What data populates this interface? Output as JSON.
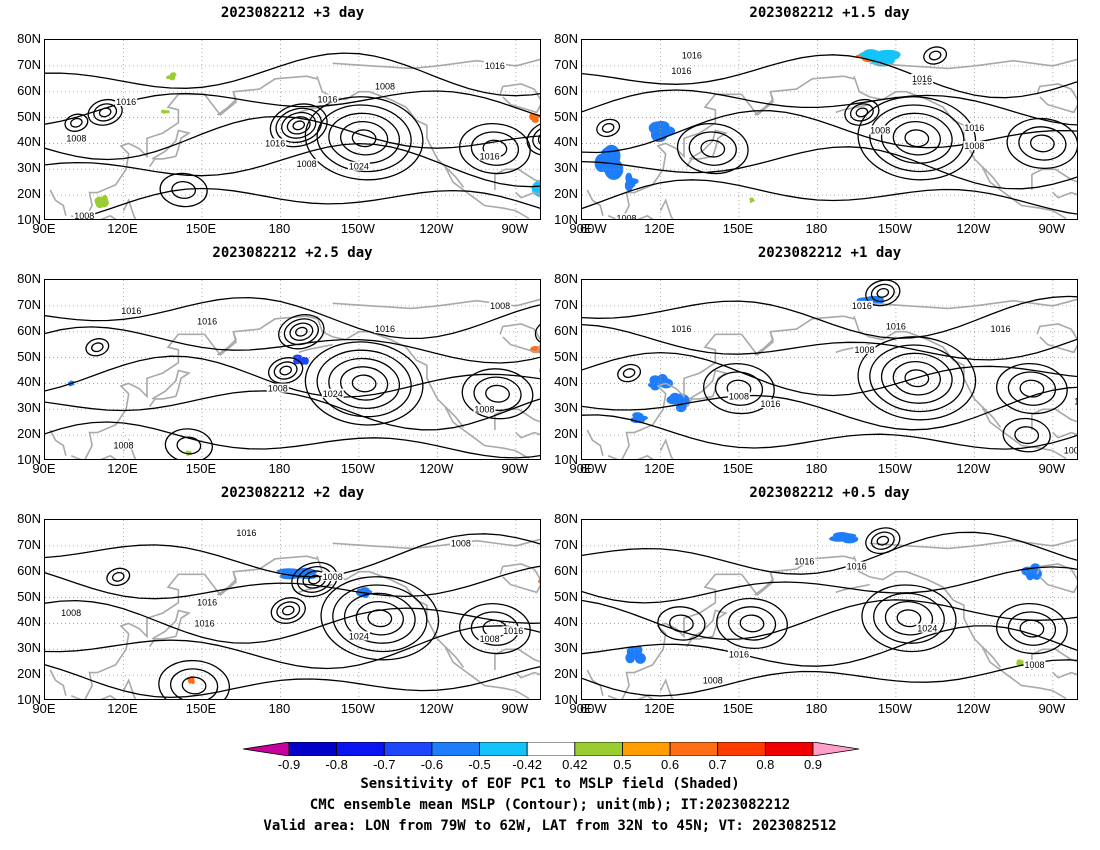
{
  "panels": [
    {
      "title": "2023082212 +3 day",
      "contour_labels": [
        "1008",
        "1016",
        "1008",
        "1016",
        "1008",
        "1016",
        "1016",
        "1024",
        "1016",
        "1016",
        "1008"
      ]
    },
    {
      "title": "2023082212 +1.5 day",
      "contour_labels": [
        "1016",
        "1016",
        "1016",
        "1008",
        "1016",
        "1016",
        "1008",
        "1008",
        "1016",
        "1008"
      ]
    },
    {
      "title": "2023082212 +2.5 day",
      "contour_labels": [
        "1016",
        "1016",
        "1016",
        "1008",
        "1008",
        "1024",
        "1008",
        "1016",
        "1008"
      ]
    },
    {
      "title": "2023082212 +1 day",
      "contour_labels": [
        "1016",
        "1016",
        "1016",
        "1016",
        "1008",
        "1008",
        "1016",
        "1016",
        "1008"
      ]
    },
    {
      "title": "2023082212 +2 day",
      "contour_labels": [
        "1016",
        "1008",
        "1016",
        "1008",
        "1016",
        "1008",
        "1024",
        "1008",
        "1016",
        "1016"
      ]
    },
    {
      "title": "2023082212 +0.5 day",
      "contour_labels": [
        "1016",
        "1016",
        "1008",
        "1024",
        "1016",
        "1008",
        "1008",
        "1016"
      ]
    }
  ],
  "lat_labels": [
    "80N",
    "70N",
    "60N",
    "50N",
    "40N",
    "30N",
    "20N",
    "10N"
  ],
  "lon_labels": [
    "90E",
    "120E",
    "150E",
    "180",
    "150W",
    "120W",
    "90W",
    "60W"
  ],
  "colorbar": {
    "labels": [
      "-0.9",
      "-0.8",
      "-0.7",
      "-0.6",
      "-0.5",
      "-0.42",
      "0.42",
      "0.5",
      "0.6",
      "0.7",
      "0.8",
      "0.9"
    ],
    "colors": [
      "#c8009c",
      "#0000c8",
      "#0a14f0",
      "#1e46fa",
      "#1e7dfa",
      "#14c3fa",
      "#ffffff",
      "#9acd32",
      "#ff9d00",
      "#ff6e14",
      "#ff3c00",
      "#f00000",
      "#ff9ec8"
    ]
  },
  "caption": {
    "line1": "Sensitivity of EOF PC1 to MSLP field (Shaded)",
    "line2": "CMC ensemble mean MSLP (Contour); unit(mb); IT:2023082212",
    "line3": "Valid area: LON from 79W to 62W, LAT from 32N to 45N; VT: 2023082512"
  }
}
